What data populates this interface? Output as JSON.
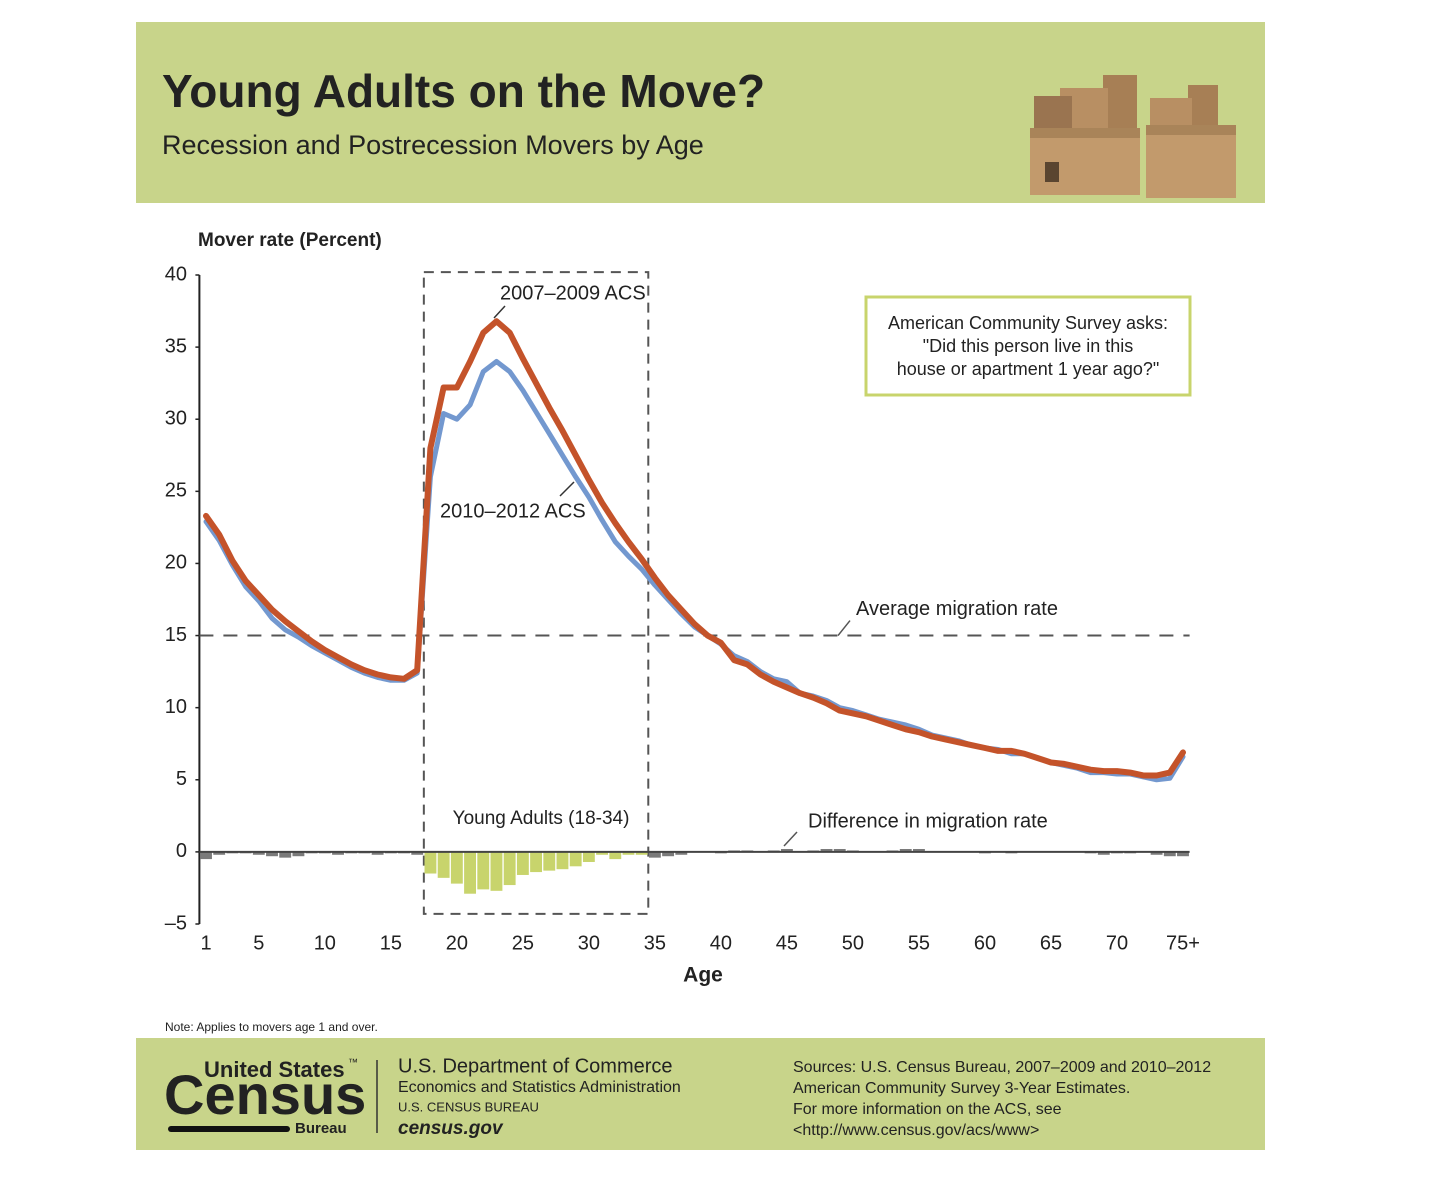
{
  "header": {
    "title": "Young Adults on the Move?",
    "subtitle": "Recession and Postrecession Movers by Age"
  },
  "chart_data": {
    "type": "line",
    "y_axis_label": "Mover rate (Percent)",
    "x_axis_label": "Age",
    "x": [
      1,
      2,
      3,
      4,
      5,
      6,
      7,
      8,
      9,
      10,
      11,
      12,
      13,
      14,
      15,
      16,
      17,
      18,
      19,
      20,
      21,
      22,
      23,
      24,
      25,
      26,
      27,
      28,
      29,
      30,
      31,
      32,
      33,
      34,
      35,
      36,
      37,
      38,
      39,
      40,
      41,
      42,
      43,
      44,
      45,
      46,
      47,
      48,
      49,
      50,
      51,
      52,
      53,
      54,
      55,
      56,
      57,
      58,
      59,
      60,
      61,
      62,
      63,
      64,
      65,
      66,
      67,
      68,
      69,
      70,
      71,
      72,
      73,
      74,
      75
    ],
    "xlim": [
      0.5,
      75.5
    ],
    "xticks": [
      1,
      5,
      10,
      15,
      20,
      25,
      30,
      35,
      40,
      45,
      50,
      55,
      60,
      65,
      70,
      {
        "value": 75,
        "label": "75+"
      }
    ],
    "ylim": [
      -5,
      40
    ],
    "yticks": [
      {
        "value": -5,
        "label": "–5"
      },
      0,
      5,
      10,
      15,
      20,
      25,
      30,
      35,
      40
    ],
    "series": [
      {
        "name": "2010–2012 ACS",
        "color": "#7398cf",
        "values": [
          22.9,
          21.6,
          19.9,
          18.4,
          17.4,
          16.2,
          15.4,
          14.9,
          14.3,
          13.8,
          13.3,
          12.8,
          12.4,
          12.1,
          11.9,
          11.9,
          12.4,
          26.0,
          30.4,
          30.0,
          31.0,
          33.3,
          34.0,
          33.3,
          32.0,
          30.5,
          29.0,
          27.5,
          26.0,
          24.6,
          23.0,
          21.5,
          20.5,
          19.6,
          18.5,
          17.5,
          16.5,
          15.6,
          15.0,
          14.4,
          13.6,
          13.2,
          12.5,
          12.0,
          11.8,
          11.0,
          10.8,
          10.5,
          10.0,
          9.8,
          9.5,
          9.2,
          9.0,
          8.8,
          8.5,
          8.1,
          7.9,
          7.7,
          7.4,
          7.2,
          7.1,
          6.8,
          6.8,
          6.5,
          6.2,
          6.0,
          5.8,
          5.5,
          5.5,
          5.4,
          5.4,
          5.2,
          5.0,
          5.1,
          6.6
        ]
      },
      {
        "name": "2007–2009 ACS",
        "color": "#c4532a",
        "values": [
          23.3,
          22.0,
          20.2,
          18.8,
          17.8,
          16.8,
          16.0,
          15.3,
          14.6,
          14.0,
          13.5,
          13.0,
          12.6,
          12.3,
          12.1,
          12.0,
          12.6,
          28.0,
          32.2,
          32.2,
          34.0,
          36.0,
          36.8,
          36.0,
          34.2,
          32.5,
          30.8,
          29.2,
          27.5,
          25.8,
          24.2,
          22.8,
          21.5,
          20.3,
          19.0,
          17.8,
          16.8,
          15.8,
          15.0,
          14.5,
          13.3,
          13.0,
          12.3,
          11.8,
          11.4,
          11.0,
          10.7,
          10.3,
          9.8,
          9.6,
          9.4,
          9.1,
          8.8,
          8.5,
          8.3,
          8.0,
          7.8,
          7.6,
          7.4,
          7.2,
          7.0,
          7.0,
          6.8,
          6.5,
          6.2,
          6.1,
          5.9,
          5.7,
          5.6,
          5.6,
          5.5,
          5.3,
          5.3,
          5.5,
          6.9
        ]
      }
    ],
    "bars": {
      "name": "Difference in migration rate",
      "color": "#7a7a7a",
      "values": [
        -0.5,
        -0.2,
        -0.1,
        -0.1,
        -0.2,
        -0.3,
        -0.4,
        -0.3,
        -0.1,
        -0.1,
        -0.2,
        -0.1,
        -0.1,
        -0.2,
        -0.1,
        -0.1,
        -0.2,
        -1.5,
        -1.8,
        -2.2,
        -2.9,
        -2.6,
        -2.7,
        -2.3,
        -1.6,
        -1.4,
        -1.3,
        -1.2,
        -1.0,
        -0.7,
        -0.2,
        -0.5,
        -0.2,
        -0.2,
        -0.4,
        -0.3,
        -0.2,
        0,
        0,
        -0.1,
        0.1,
        0.1,
        0,
        0.1,
        0.2,
        0,
        0.1,
        0.2,
        0.2,
        0.1,
        0,
        0,
        0.1,
        0.2,
        0.2,
        0,
        0,
        0,
        0,
        -0.1,
        0,
        -0.1,
        0,
        0,
        0,
        0,
        0,
        -0.1,
        -0.2,
        -0.1,
        -0.1,
        0,
        -0.2,
        -0.3,
        -0.3
      ]
    },
    "highlight": {
      "label": "Young Adults (18-34)",
      "x": [
        17.5,
        34.5
      ],
      "y": [
        -4.3,
        40.2
      ],
      "color": "#c8d46c"
    },
    "reference_line": {
      "label": "Average migration rate",
      "value": 15,
      "color": "#555555"
    },
    "callout": [
      "American Community Survey asks:",
      "\"Did this person live in this",
      "house or apartment 1 year ago?\""
    ],
    "note": "Note: Applies to movers age 1 and over."
  },
  "footer": {
    "logo": {
      "line1": "United States",
      "tm": "™",
      "line2": "Census",
      "line3": "Bureau"
    },
    "agency": [
      "U.S. Department of Commerce",
      "Economics and Statistics Administration",
      "U.S. CENSUS BUREAU",
      "census.gov"
    ],
    "sources": [
      "Sources:  U.S. Census Bureau, 2007–2009 and 2010–2012",
      "American Community Survey 3-Year Estimates.",
      "For more information on the ACS, see",
      "<http://www.census.gov/acs/www>"
    ]
  }
}
